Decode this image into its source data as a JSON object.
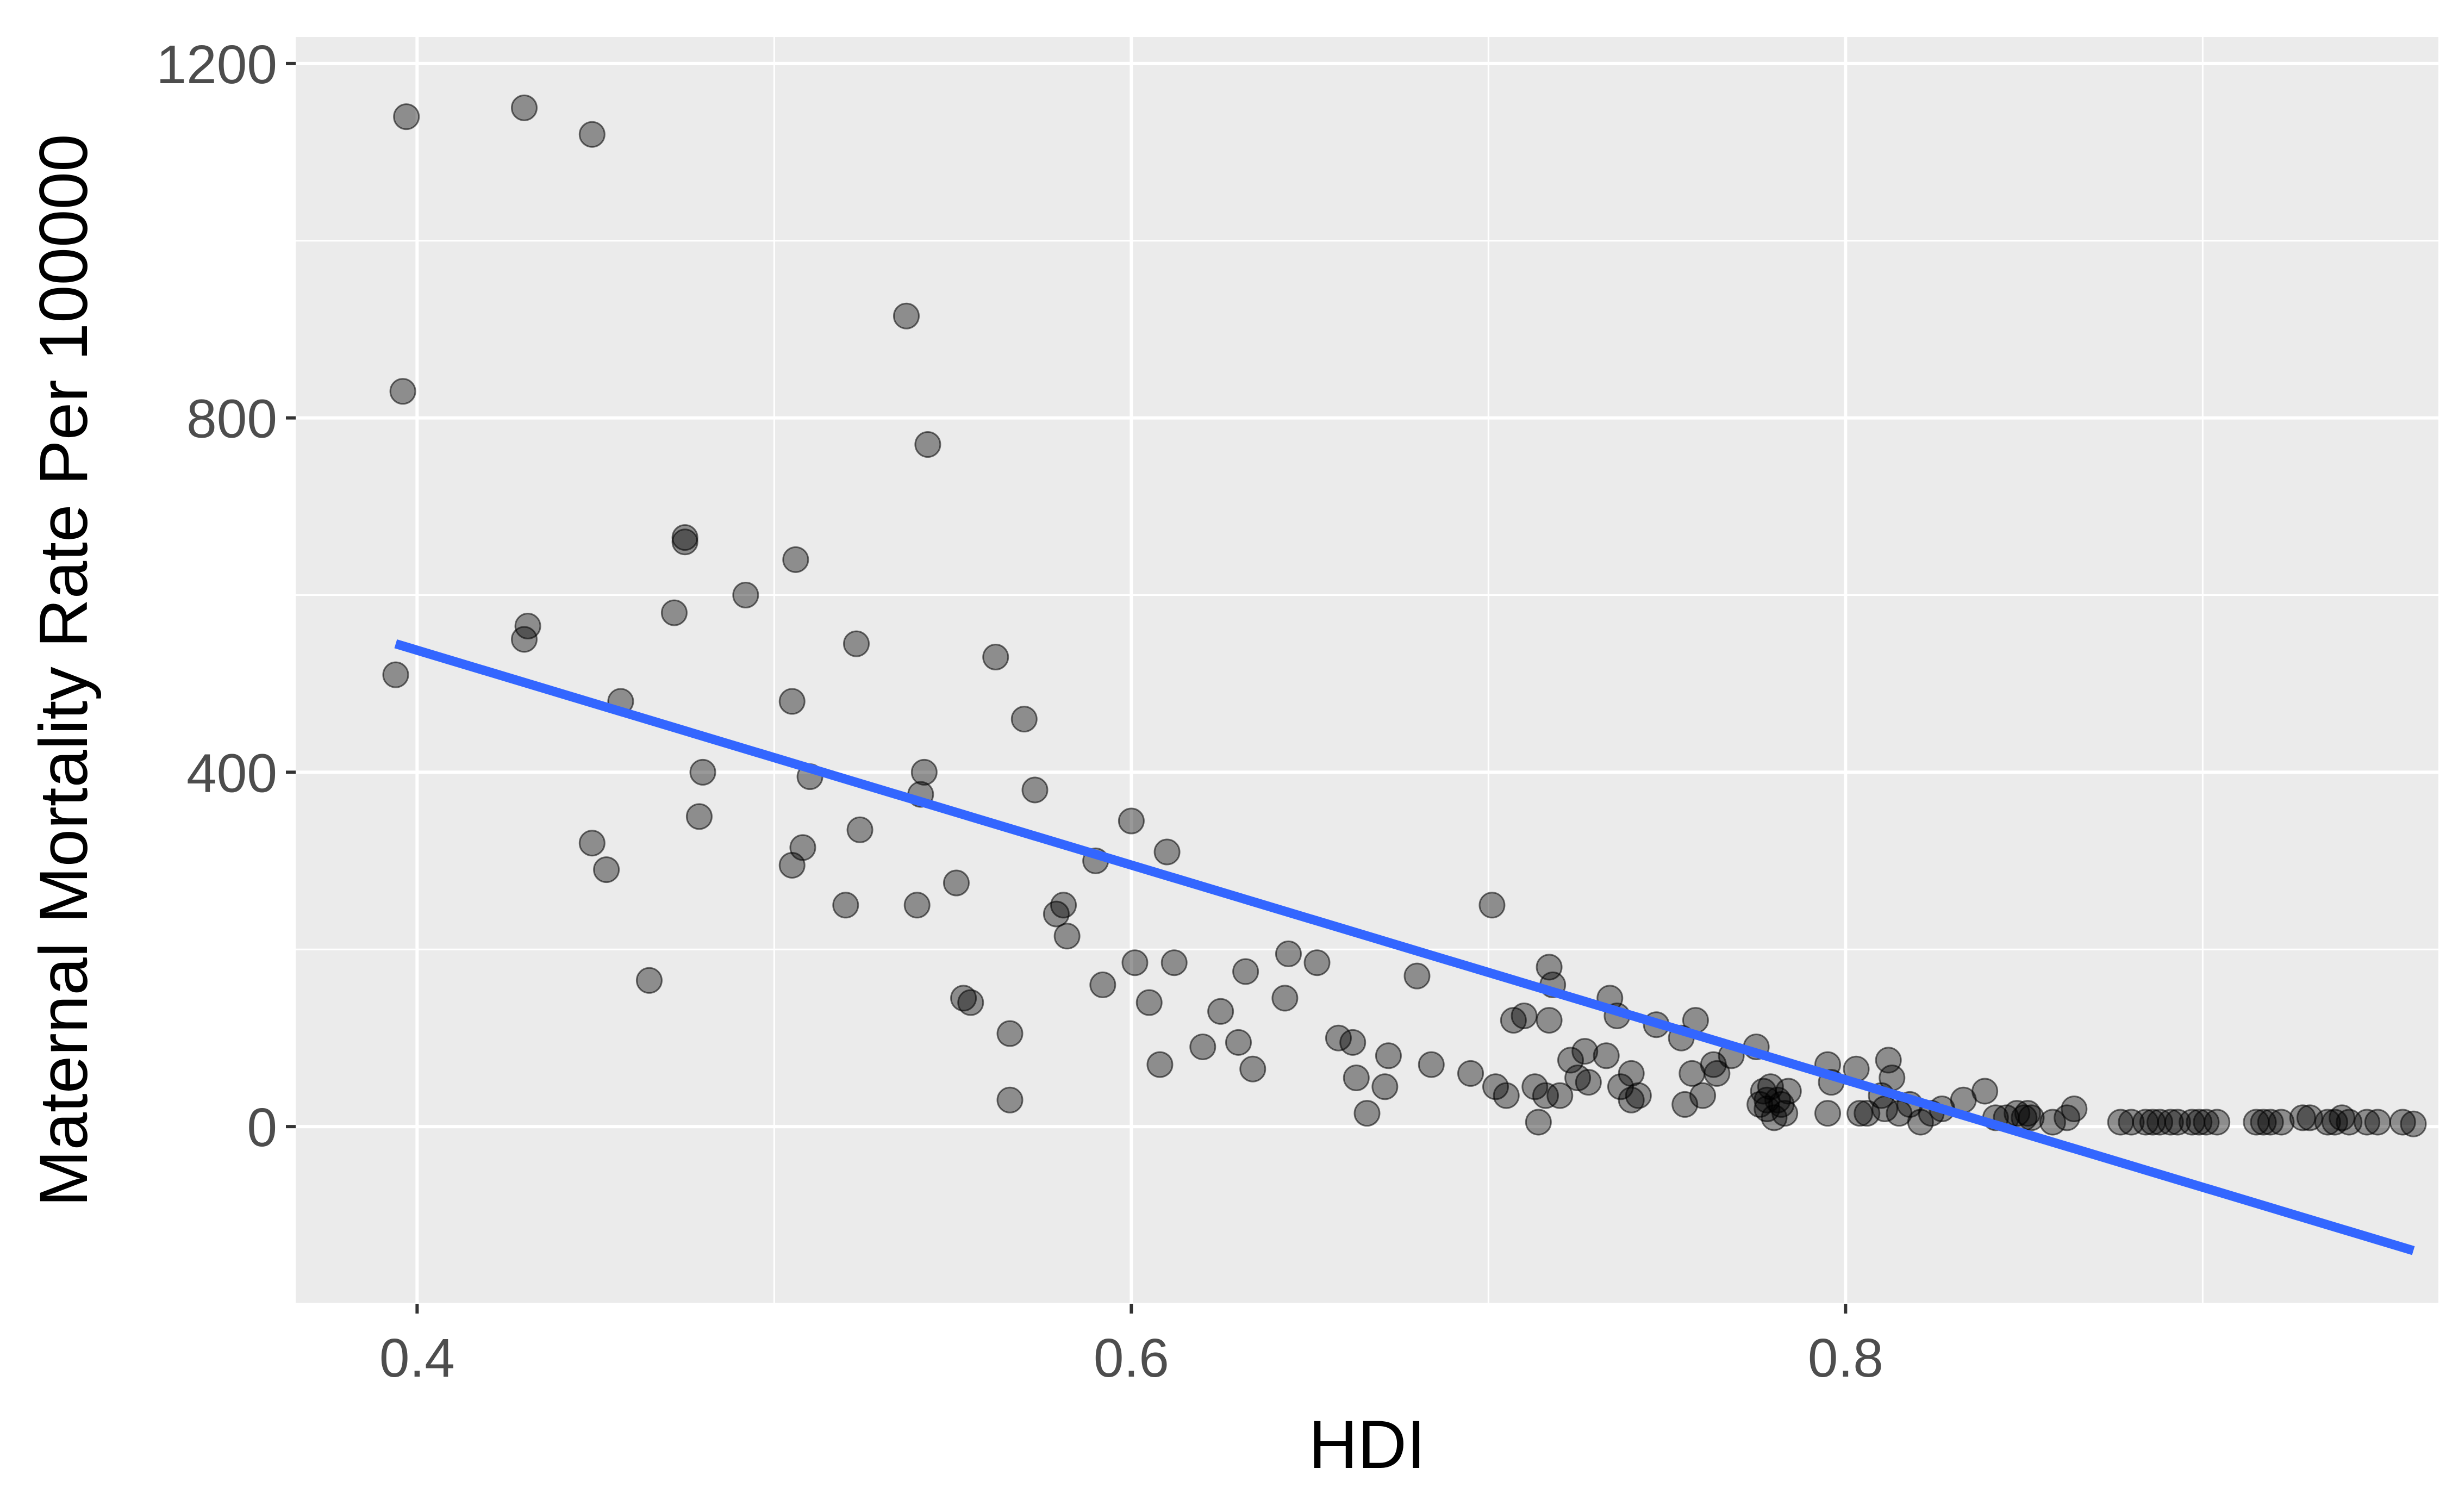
{
  "chart_data": {
    "type": "scatter",
    "title": "",
    "xlabel": "HDI",
    "ylabel": "Maternal Mortality Rate Per 100000",
    "xlim": [
      0.366,
      0.966
    ],
    "ylim": [
      -200,
      1230
    ],
    "x_ticks": [
      0.4,
      0.6,
      0.8
    ],
    "x_tick_labels": [
      "0.4",
      "0.6",
      "0.8"
    ],
    "y_ticks": [
      0,
      400,
      800,
      1200
    ],
    "y_tick_labels": [
      "0",
      "400",
      "800",
      "1200"
    ],
    "grid": true,
    "legend": "none",
    "colors": {
      "panel": "#ebebeb",
      "grid": "#ffffff",
      "points": "#000000",
      "points_opacity": 0.4,
      "fit_line": "#3366ff",
      "axis_text": "#4d4d4d",
      "axis_title": "#000000"
    },
    "series": [
      {
        "type": "scatter",
        "points": [
          [
            0.394,
            510
          ],
          [
            0.396,
            830
          ],
          [
            0.397,
            1140
          ],
          [
            0.43,
            1150
          ],
          [
            0.43,
            550
          ],
          [
            0.431,
            565
          ],
          [
            0.449,
            1120
          ],
          [
            0.449,
            320
          ],
          [
            0.453,
            290
          ],
          [
            0.457,
            480
          ],
          [
            0.465,
            165
          ],
          [
            0.472,
            580
          ],
          [
            0.475,
            665
          ],
          [
            0.475,
            660
          ],
          [
            0.479,
            350
          ],
          [
            0.48,
            400
          ],
          [
            0.492,
            600
          ],
          [
            0.506,
            640
          ],
          [
            0.505,
            480
          ],
          [
            0.505,
            295
          ],
          [
            0.508,
            315
          ],
          [
            0.51,
            395
          ],
          [
            0.52,
            250
          ],
          [
            0.523,
            545
          ],
          [
            0.524,
            335
          ],
          [
            0.537,
            915
          ],
          [
            0.54,
            250
          ],
          [
            0.541,
            375
          ],
          [
            0.542,
            400
          ],
          [
            0.543,
            770
          ],
          [
            0.551,
            275
          ],
          [
            0.553,
            145
          ],
          [
            0.555,
            140
          ],
          [
            0.562,
            530
          ],
          [
            0.566,
            105
          ],
          [
            0.566,
            30
          ],
          [
            0.57,
            460
          ],
          [
            0.573,
            380
          ],
          [
            0.579,
            240
          ],
          [
            0.581,
            250
          ],
          [
            0.582,
            215
          ],
          [
            0.59,
            300
          ],
          [
            0.592,
            160
          ],
          [
            0.6,
            345
          ],
          [
            0.601,
            185
          ],
          [
            0.605,
            140
          ],
          [
            0.608,
            70
          ],
          [
            0.61,
            310
          ],
          [
            0.612,
            185
          ],
          [
            0.62,
            90
          ],
          [
            0.625,
            130
          ],
          [
            0.63,
            95
          ],
          [
            0.632,
            175
          ],
          [
            0.634,
            65
          ],
          [
            0.643,
            145
          ],
          [
            0.644,
            195
          ],
          [
            0.652,
            185
          ],
          [
            0.658,
            100
          ],
          [
            0.662,
            95
          ],
          [
            0.663,
            55
          ],
          [
            0.666,
            15
          ],
          [
            0.671,
            45
          ],
          [
            0.672,
            80
          ],
          [
            0.68,
            170
          ],
          [
            0.684,
            70
          ],
          [
            0.695,
            60
          ],
          [
            0.701,
            250
          ],
          [
            0.702,
            45
          ],
          [
            0.705,
            35
          ],
          [
            0.707,
            120
          ],
          [
            0.71,
            125
          ],
          [
            0.713,
            45
          ],
          [
            0.714,
            5
          ],
          [
            0.716,
            35
          ],
          [
            0.717,
            180
          ],
          [
            0.717,
            120
          ],
          [
            0.718,
            160
          ],
          [
            0.72,
            35
          ],
          [
            0.723,
            75
          ],
          [
            0.725,
            55
          ],
          [
            0.727,
            85
          ],
          [
            0.728,
            50
          ],
          [
            0.733,
            80
          ],
          [
            0.734,
            145
          ],
          [
            0.736,
            125
          ],
          [
            0.737,
            45
          ],
          [
            0.74,
            60
          ],
          [
            0.74,
            30
          ],
          [
            0.742,
            35
          ],
          [
            0.747,
            115
          ],
          [
            0.754,
            100
          ],
          [
            0.755,
            25
          ],
          [
            0.757,
            60
          ],
          [
            0.758,
            120
          ],
          [
            0.76,
            35
          ],
          [
            0.763,
            70
          ],
          [
            0.764,
            60
          ],
          [
            0.768,
            80
          ],
          [
            0.775,
            90
          ],
          [
            0.776,
            25
          ],
          [
            0.777,
            40
          ],
          [
            0.778,
            30
          ],
          [
            0.778,
            20
          ],
          [
            0.779,
            45
          ],
          [
            0.78,
            10
          ],
          [
            0.781,
            30
          ],
          [
            0.782,
            25
          ],
          [
            0.783,
            15
          ],
          [
            0.784,
            40
          ],
          [
            0.795,
            70
          ],
          [
            0.795,
            15
          ],
          [
            0.796,
            50
          ],
          [
            0.803,
            65
          ],
          [
            0.804,
            15
          ],
          [
            0.806,
            15
          ],
          [
            0.81,
            35
          ],
          [
            0.811,
            20
          ],
          [
            0.812,
            75
          ],
          [
            0.813,
            55
          ],
          [
            0.815,
            15
          ],
          [
            0.818,
            25
          ],
          [
            0.821,
            5
          ],
          [
            0.824,
            15
          ],
          [
            0.827,
            20
          ],
          [
            0.833,
            30
          ],
          [
            0.839,
            40
          ],
          [
            0.842,
            10
          ],
          [
            0.845,
            10
          ],
          [
            0.848,
            15
          ],
          [
            0.85,
            10
          ],
          [
            0.851,
            15
          ],
          [
            0.852,
            10
          ],
          [
            0.858,
            5
          ],
          [
            0.862,
            10
          ],
          [
            0.864,
            20
          ],
          [
            0.877,
            5
          ],
          [
            0.88,
            5
          ],
          [
            0.884,
            5
          ],
          [
            0.886,
            5
          ],
          [
            0.888,
            5
          ],
          [
            0.891,
            5
          ],
          [
            0.893,
            5
          ],
          [
            0.897,
            5
          ],
          [
            0.899,
            5
          ],
          [
            0.901,
            5
          ],
          [
            0.904,
            5
          ],
          [
            0.915,
            5
          ],
          [
            0.917,
            5
          ],
          [
            0.919,
            5
          ],
          [
            0.922,
            5
          ],
          [
            0.928,
            10
          ],
          [
            0.93,
            10
          ],
          [
            0.935,
            5
          ],
          [
            0.937,
            5
          ],
          [
            0.939,
            10
          ],
          [
            0.941,
            5
          ],
          [
            0.946,
            5
          ],
          [
            0.949,
            5
          ],
          [
            0.956,
            5
          ],
          [
            0.959,
            3
          ]
        ]
      },
      {
        "type": "line",
        "points": [
          [
            0.394,
            545
          ],
          [
            0.959,
            -140
          ]
        ]
      }
    ]
  }
}
